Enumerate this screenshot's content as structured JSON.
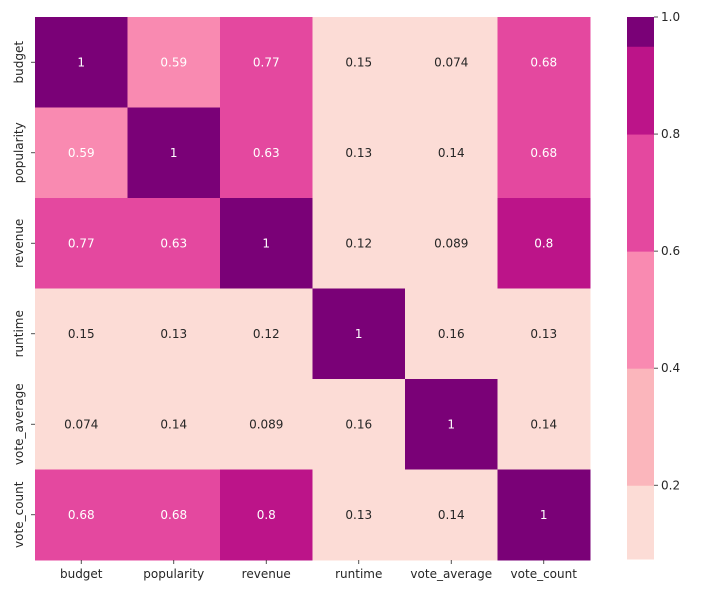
{
  "chart_data": {
    "type": "heatmap",
    "x_labels": [
      "budget",
      "popularity",
      "revenue",
      "runtime",
      "vote_average",
      "vote_count"
    ],
    "y_labels": [
      "budget",
      "popularity",
      "revenue",
      "runtime",
      "vote_average",
      "vote_count"
    ],
    "values": [
      [
        1,
        0.59,
        0.77,
        0.15,
        0.074,
        0.68
      ],
      [
        0.59,
        1,
        0.63,
        0.13,
        0.14,
        0.68
      ],
      [
        0.77,
        0.63,
        1,
        0.12,
        0.089,
        0.8
      ],
      [
        0.15,
        0.13,
        0.12,
        1,
        0.16,
        0.13
      ],
      [
        0.074,
        0.14,
        0.089,
        0.16,
        1,
        0.14
      ],
      [
        0.68,
        0.68,
        0.8,
        0.13,
        0.14,
        1
      ]
    ],
    "cell_labels": [
      [
        "1",
        "0.59",
        "0.77",
        "0.15",
        "0.074",
        "0.68"
      ],
      [
        "0.59",
        "1",
        "0.63",
        "0.13",
        "0.14",
        "0.68"
      ],
      [
        "0.77",
        "0.63",
        "1",
        "0.12",
        "0.089",
        "0.8"
      ],
      [
        "0.15",
        "0.13",
        "0.12",
        "1",
        "0.16",
        "0.13"
      ],
      [
        "0.074",
        "0.14",
        "0.089",
        "0.16",
        "1",
        "0.14"
      ],
      [
        "0.68",
        "0.68",
        "0.8",
        "0.13",
        "0.14",
        "1"
      ]
    ],
    "colorbar": {
      "range": [
        0.074,
        1
      ],
      "ticks": [
        "0.2",
        "0.4",
        "0.6",
        "0.8",
        "1.0"
      ],
      "tick_values": [
        0.2,
        0.4,
        0.6,
        0.8,
        1.0
      ],
      "bins": [
        {
          "from": 0.074,
          "to": 0.2,
          "color": "#fcdcd6"
        },
        {
          "from": 0.2,
          "to": 0.4,
          "color": "#fbb6bc"
        },
        {
          "from": 0.4,
          "to": 0.6,
          "color": "#f98ab1"
        },
        {
          "from": 0.6,
          "to": 0.8,
          "color": "#e4489f"
        },
        {
          "from": 0.8,
          "to": 0.95,
          "color": "#bc1489"
        },
        {
          "from": 0.95,
          "to": 1.0,
          "color": "#7a0177"
        }
      ]
    },
    "colors": {
      "text_light": "#ffffff",
      "text_dark": "#262626"
    }
  }
}
